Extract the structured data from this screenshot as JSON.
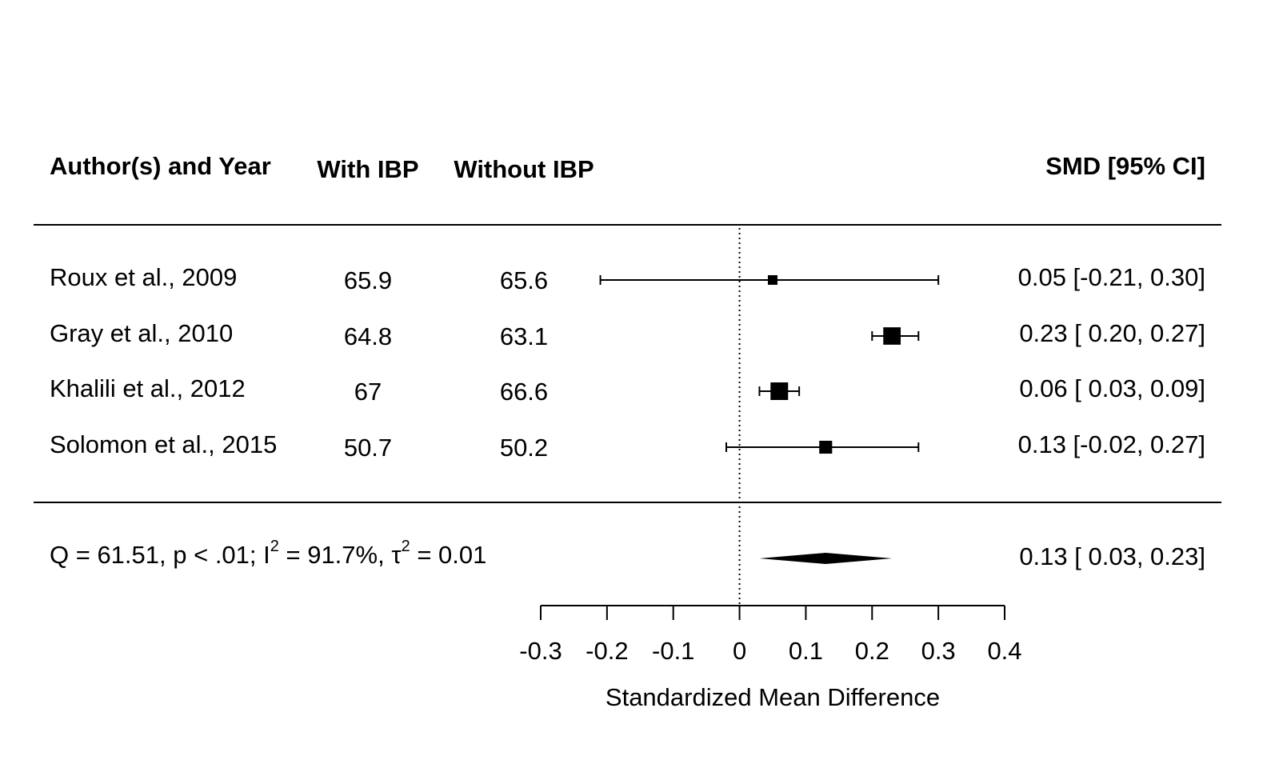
{
  "chart_data": {
    "type": "forest",
    "columns": [
      "Author(s) and Year",
      "With IBP",
      "Without IBP",
      "SMD [95% CI]"
    ],
    "studies": [
      {
        "label": "Roux et al., 2009",
        "with_ibp": "65.9",
        "without_ibp": "65.6",
        "smd": 0.05,
        "ci_low": -0.21,
        "ci_high": 0.3,
        "ci_text": "0.05 [-0.21, 0.30]",
        "weight": 0.05
      },
      {
        "label": "Gray et al., 2010",
        "with_ibp": "64.8",
        "without_ibp": "63.1",
        "smd": 0.23,
        "ci_low": 0.2,
        "ci_high": 0.27,
        "ci_text": "0.23 [ 0.20, 0.27]",
        "weight": 0.34
      },
      {
        "label": "Khalili et al., 2012",
        "with_ibp": "67",
        "without_ibp": "66.6",
        "smd": 0.06,
        "ci_low": 0.03,
        "ci_high": 0.09,
        "ci_text": "0.06 [ 0.03, 0.09]",
        "weight": 0.35
      },
      {
        "label": "Solomon et al., 2015",
        "with_ibp": "50.7",
        "without_ibp": "50.2",
        "smd": 0.13,
        "ci_low": -0.02,
        "ci_high": 0.27,
        "ci_text": "0.13 [-0.02, 0.27]",
        "weight": 0.14
      }
    ],
    "summary": {
      "q_text": "Q = 61.51, p < .01; I",
      "i2_text": " = 91.7%, τ",
      "tau2_text": " = 0.01",
      "superscript": "2",
      "smd": 0.13,
      "ci_low": 0.03,
      "ci_high": 0.23,
      "ci_text": "0.13 [ 0.03, 0.23]"
    },
    "xlabel": "Standardized Mean Difference",
    "xlim": [
      -0.3,
      0.4
    ],
    "xticks": [
      -0.3,
      -0.2,
      -0.1,
      0,
      0.1,
      0.2,
      0.3,
      0.4
    ],
    "xtick_labels": [
      "-0.3",
      "-0.2",
      "-0.1",
      "0",
      "0.1",
      "0.2",
      "0.3",
      "0.4"
    ],
    "reference_line": 0
  }
}
